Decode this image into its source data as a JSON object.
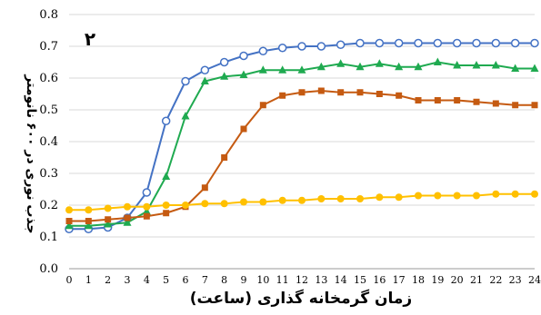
{
  "chart_data": {
    "type": "line",
    "panel_label": "۲",
    "xlabel": "زمان گرمخانه گذاری (ساعت)",
    "ylabel": "جذب نوری در ۶۰۰ نانومتر",
    "xlim": [
      0,
      24
    ],
    "ylim": [
      0,
      0.8
    ],
    "yticks": [
      "0.0",
      "0.1",
      "0.2",
      "0.3",
      "0.4",
      "0.5",
      "0.6",
      "0.7",
      "0.8"
    ],
    "x": [
      0,
      1,
      2,
      3,
      4,
      5,
      6,
      7,
      8,
      9,
      10,
      11,
      12,
      13,
      14,
      15,
      16,
      17,
      18,
      19,
      20,
      21,
      22,
      23,
      24
    ],
    "grid": "horizontal",
    "series": [
      {
        "color": "#4472C4",
        "marker": "open-circle",
        "values": [
          0.125,
          0.125,
          0.13,
          0.16,
          0.24,
          0.465,
          0.59,
          0.625,
          0.65,
          0.67,
          0.685,
          0.695,
          0.7,
          0.7,
          0.705,
          0.71,
          0.71,
          0.71,
          0.71,
          0.71,
          0.71,
          0.71,
          0.71,
          0.71,
          0.71
        ]
      },
      {
        "color": "#1FAA50",
        "marker": "triangle",
        "values": [
          0.135,
          0.135,
          0.14,
          0.145,
          0.18,
          0.29,
          0.48,
          0.59,
          0.605,
          0.61,
          0.625,
          0.625,
          0.625,
          0.635,
          0.645,
          0.635,
          0.645,
          0.635,
          0.635,
          0.65,
          0.64,
          0.64,
          0.64,
          0.63,
          0.63
        ]
      },
      {
        "color": "#C55A11",
        "marker": "square",
        "values": [
          0.15,
          0.15,
          0.155,
          0.16,
          0.165,
          0.175,
          0.195,
          0.255,
          0.35,
          0.44,
          0.515,
          0.545,
          0.555,
          0.56,
          0.555,
          0.555,
          0.55,
          0.545,
          0.53,
          0.53,
          0.53,
          0.525,
          0.52,
          0.515,
          0.515
        ]
      },
      {
        "color": "#FFC000",
        "marker": "filled-circle",
        "values": [
          0.185,
          0.185,
          0.19,
          0.195,
          0.195,
          0.2,
          0.2,
          0.205,
          0.205,
          0.21,
          0.21,
          0.215,
          0.215,
          0.22,
          0.22,
          0.22,
          0.225,
          0.225,
          0.23,
          0.23,
          0.23,
          0.23,
          0.235,
          0.235,
          0.235
        ]
      }
    ]
  }
}
